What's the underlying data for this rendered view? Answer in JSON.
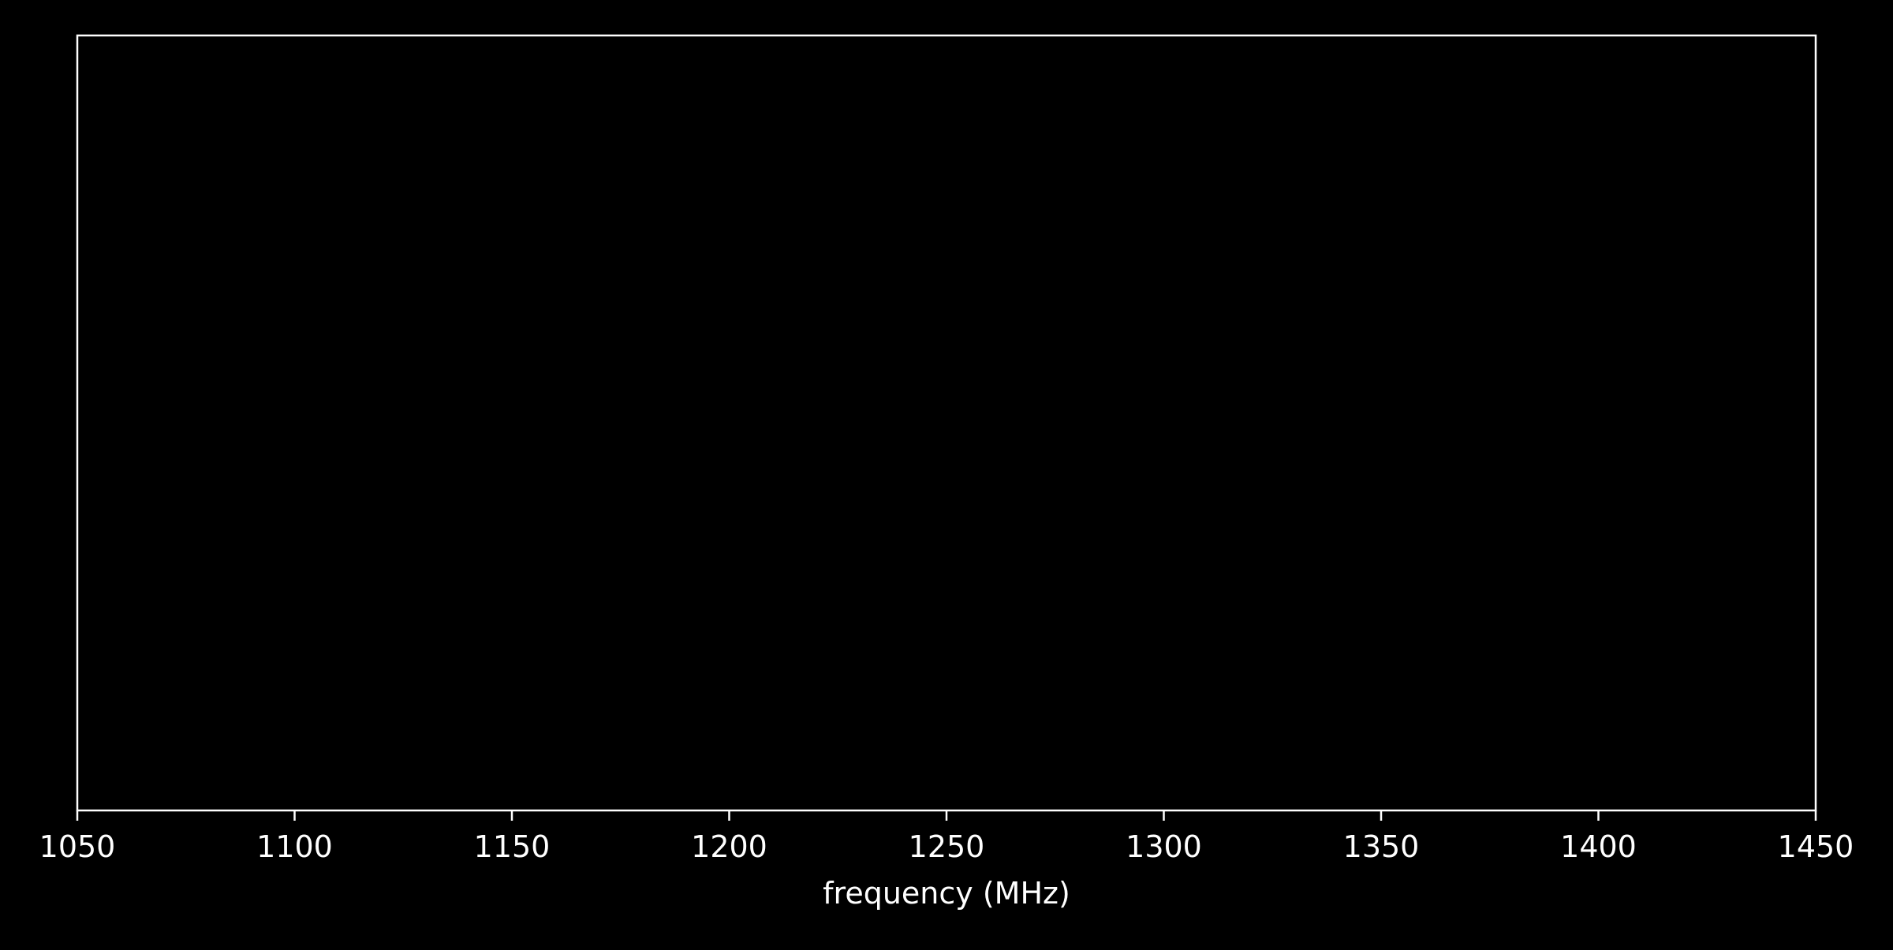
{
  "chart_data": {
    "type": "line",
    "title": "",
    "xlabel": "frequency (MHz)",
    "ylabel": "",
    "xlim": [
      1050,
      1450
    ],
    "x_ticks": [
      1050,
      1100,
      1150,
      1200,
      1250,
      1300,
      1350,
      1400,
      1450
    ],
    "x_tick_labels": [
      "1050",
      "1100",
      "1150",
      "1200",
      "1250",
      "1300",
      "1350",
      "1400",
      "1450"
    ],
    "y_ticks_visible": false,
    "grid": false,
    "series": [],
    "colors": {
      "background": "#000000",
      "axes": "#ffffff",
      "text": "#ffffff"
    }
  }
}
